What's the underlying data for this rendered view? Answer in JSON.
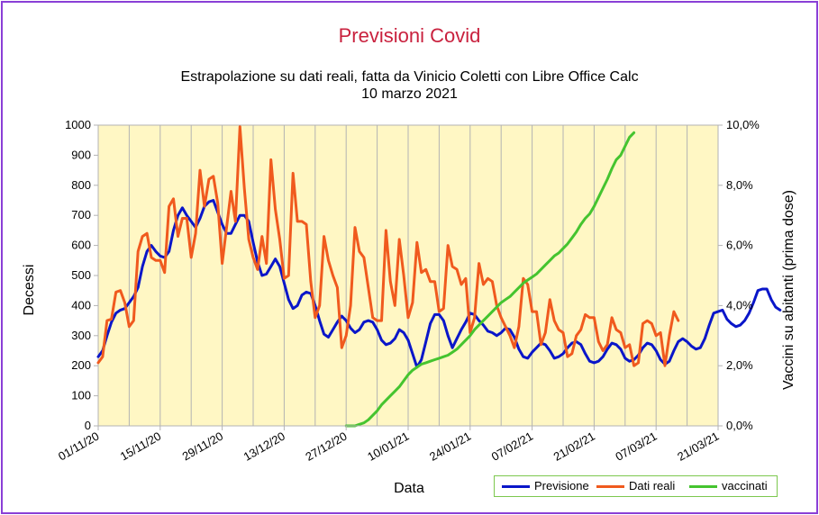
{
  "chart_data": {
    "type": "line",
    "title": "Previsioni Covid",
    "subtitle_line1": "Estrapolazione su dati reali, fatta da Vinicio Coletti con Libre Office Calc",
    "subtitle_line2": "10 marzo 2021",
    "xlabel": "Data",
    "ylabel_left": "Decessi",
    "ylabel_right": "Vaccini su abitanti (prima dose)",
    "x_tick_labels": [
      "01/11/20",
      "15/11/20",
      "29/11/20",
      "13/12/20",
      "27/12/20",
      "10/01/21",
      "24/01/21",
      "07/02/21",
      "21/02/21",
      "07/03/21",
      "21/03/21"
    ],
    "y_left_ticks": [
      "0",
      "100",
      "200",
      "300",
      "400",
      "500",
      "600",
      "700",
      "800",
      "900",
      "1000"
    ],
    "y_right_ticks": [
      "0,0%",
      "2,0%",
      "4,0%",
      "6,0%",
      "8,0%",
      "10,0%"
    ],
    "ylim_left": [
      0,
      1000
    ],
    "ylim_right": [
      0,
      10
    ],
    "x_start_label": "01/11/20",
    "x_day_count": 140,
    "grid": "vertical",
    "legend_position": "bottom-right",
    "series": [
      {
        "name": "Previsione",
        "axis": "left",
        "color": "#0a16c9",
        "start_day": 0,
        "values": [
          230,
          250,
          300,
          345,
          375,
          385,
          390,
          410,
          430,
          460,
          530,
          580,
          600,
          580,
          565,
          560,
          580,
          650,
          700,
          725,
          700,
          680,
          660,
          690,
          730,
          745,
          750,
          710,
          670,
          640,
          640,
          670,
          700,
          700,
          680,
          610,
          545,
          500,
          505,
          530,
          555,
          530,
          475,
          420,
          390,
          400,
          435,
          445,
          440,
          400,
          350,
          305,
          295,
          320,
          345,
          365,
          350,
          325,
          310,
          320,
          345,
          350,
          345,
          320,
          285,
          270,
          275,
          290,
          320,
          310,
          285,
          240,
          195,
          220,
          280,
          340,
          370,
          370,
          350,
          300,
          260,
          290,
          320,
          345,
          375,
          370,
          350,
          335,
          315,
          310,
          300,
          310,
          325,
          320,
          295,
          255,
          230,
          225,
          245,
          260,
          275,
          270,
          250,
          225,
          230,
          240,
          260,
          275,
          280,
          270,
          240,
          215,
          210,
          215,
          230,
          255,
          275,
          270,
          255,
          225,
          215,
          220,
          235,
          260,
          275,
          270,
          250,
          220,
          205,
          215,
          250,
          280,
          290,
          280,
          265,
          255,
          260,
          290,
          335,
          375,
          380,
          385,
          355,
          340,
          330,
          335,
          350,
          375,
          410,
          450,
          455,
          455,
          420,
          395,
          385
        ]
      },
      {
        "name": "Dati reali",
        "axis": "left",
        "color": "#f05a1e",
        "start_day": 0,
        "values": [
          210,
          230,
          350,
          355,
          445,
          450,
          410,
          330,
          350,
          580,
          630,
          640,
          560,
          550,
          550,
          510,
          730,
          755,
          630,
          690,
          690,
          560,
          640,
          850,
          730,
          820,
          830,
          740,
          540,
          660,
          780,
          680,
          995,
          790,
          620,
          560,
          520,
          630,
          540,
          885,
          720,
          620,
          490,
          500,
          840,
          680,
          680,
          670,
          480,
          360,
          400,
          630,
          550,
          500,
          460,
          260,
          300,
          400,
          660,
          580,
          560,
          460,
          360,
          350,
          350,
          650,
          480,
          400,
          620,
          500,
          360,
          410,
          610,
          510,
          520,
          480,
          480,
          380,
          390,
          600,
          530,
          520,
          470,
          490,
          310,
          360,
          540,
          470,
          490,
          480,
          400,
          360,
          330,
          300,
          260,
          330,
          490,
          470,
          380,
          380,
          270,
          310,
          420,
          350,
          320,
          310,
          230,
          240,
          300,
          320,
          370,
          360,
          360,
          280,
          250,
          270,
          360,
          320,
          310,
          260,
          270,
          200,
          210,
          340,
          350,
          340,
          300,
          310,
          200,
          300,
          380,
          350
        ]
      },
      {
        "name": "vaccinati",
        "axis": "right",
        "color": "#45c42f",
        "start_day": 56,
        "values": [
          0.0,
          0.0,
          0.0,
          0.05,
          0.1,
          0.2,
          0.35,
          0.5,
          0.7,
          0.85,
          1.0,
          1.15,
          1.3,
          1.5,
          1.7,
          1.85,
          1.95,
          2.05,
          2.1,
          2.15,
          2.2,
          2.25,
          2.3,
          2.35,
          2.45,
          2.55,
          2.7,
          2.85,
          3.0,
          3.2,
          3.35,
          3.5,
          3.65,
          3.8,
          3.95,
          4.1,
          4.2,
          4.3,
          4.45,
          4.6,
          4.75,
          4.85,
          4.95,
          5.05,
          5.2,
          5.35,
          5.5,
          5.65,
          5.75,
          5.9,
          6.05,
          6.25,
          6.45,
          6.7,
          6.9,
          7.05,
          7.3,
          7.6,
          7.9,
          8.2,
          8.55,
          8.85,
          9.0,
          9.3,
          9.6,
          9.75
        ]
      }
    ]
  }
}
